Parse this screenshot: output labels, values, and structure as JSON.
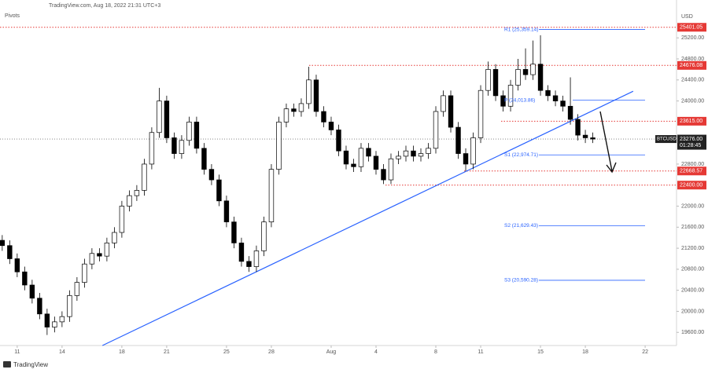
{
  "header": {
    "source": "TradingView.com, Aug 18, 2022 21:31 UTC+3",
    "indicator": "Pivots",
    "currency": "USD",
    "footer": "TradingView"
  },
  "chart_data": {
    "type": "candlestick",
    "xlim": [
      -0.3,
      90.2
    ],
    "xticks": [
      {
        "value": 2,
        "label": "11"
      },
      {
        "value": 8,
        "label": "14"
      },
      {
        "value": 16,
        "label": "18"
      },
      {
        "value": 22,
        "label": "21"
      },
      {
        "value": 30,
        "label": "25"
      },
      {
        "value": 36,
        "label": "28"
      },
      {
        "value": 44,
        "label": "Aug"
      },
      {
        "value": 50,
        "label": "4"
      },
      {
        "value": 58,
        "label": "8"
      },
      {
        "value": 64,
        "label": "11"
      },
      {
        "value": 72,
        "label": "15"
      },
      {
        "value": 78,
        "label": "18"
      },
      {
        "value": 86,
        "label": "22"
      }
    ],
    "ylim": [
      19350,
      25920
    ],
    "yticks": [
      {
        "value": 25200,
        "label": "25200.00"
      },
      {
        "value": 24800,
        "label": "24800.00"
      },
      {
        "value": 24400,
        "label": "24400.00"
      },
      {
        "value": 24000,
        "label": "24000.00"
      },
      {
        "value": 22800,
        "label": "22800.00"
      },
      {
        "value": 22000,
        "label": "22000.00"
      },
      {
        "value": 21600,
        "label": "21600.00"
      },
      {
        "value": 21200,
        "label": "21200.00"
      },
      {
        "value": 20800,
        "label": "20800.00"
      },
      {
        "value": 20400,
        "label": "20400.00"
      },
      {
        "value": 20000,
        "label": "20000.00"
      },
      {
        "value": 19600,
        "label": "19600.00"
      }
    ],
    "up_color": "#ffffff",
    "down_color": "#000000",
    "open": [
      21350,
      21250,
      21000,
      20750,
      20500,
      20250,
      19950,
      19700,
      19800,
      19900,
      20300,
      20550,
      20900,
      21100,
      21050,
      21300,
      21500,
      22000,
      22200,
      22300,
      22800,
      23400,
      24000,
      23300,
      23000,
      23250,
      23600,
      23100,
      22700,
      22500,
      22100,
      21700,
      21300,
      20950,
      20850,
      21150,
      21700,
      22700,
      23600,
      23850,
      23800,
      23950,
      24400,
      23800,
      23600,
      23450,
      23050,
      22800,
      22750,
      23100,
      22950,
      22700,
      22500,
      22900,
      22950,
      23050,
      22950,
      23000,
      23100,
      23800,
      24100,
      23500,
      23000,
      22800,
      23300,
      24200,
      24600,
      24100,
      23900,
      24300,
      24600,
      24500,
      24700,
      24200,
      24100,
      24000,
      23900,
      23650,
      23350,
      23300
    ],
    "high": [
      21450,
      21350,
      21100,
      20850,
      20600,
      20350,
      20050,
      19900,
      20000,
      20400,
      20650,
      21000,
      21200,
      21200,
      21400,
      21600,
      22100,
      22300,
      22400,
      22900,
      23500,
      24250,
      24100,
      23400,
      23350,
      23700,
      23700,
      23200,
      22800,
      22600,
      22200,
      21800,
      21400,
      21050,
      21250,
      21800,
      22800,
      23700,
      23950,
      23950,
      24050,
      24650,
      24500,
      23900,
      23700,
      23550,
      23150,
      22900,
      23200,
      23200,
      23050,
      22800,
      23000,
      23050,
      23150,
      23150,
      23100,
      23200,
      23900,
      24200,
      24200,
      23600,
      23100,
      23400,
      24300,
      24750,
      24700,
      24200,
      24400,
      24800,
      25000,
      25150,
      25250,
      24300,
      24200,
      24100,
      24450,
      23750,
      23450,
      23400
    ],
    "low": [
      21150,
      20900,
      20650,
      20400,
      20150,
      19850,
      19550,
      19600,
      19700,
      19800,
      20200,
      20450,
      20800,
      20950,
      20950,
      21200,
      21400,
      21900,
      22100,
      22200,
      22700,
      23300,
      23200,
      22900,
      22900,
      23150,
      23000,
      22600,
      22400,
      22000,
      21600,
      21200,
      20850,
      20750,
      20750,
      21050,
      21600,
      22600,
      23500,
      23700,
      23700,
      23850,
      23700,
      23500,
      23350,
      22950,
      22700,
      22650,
      22650,
      22850,
      22600,
      22420,
      22420,
      22800,
      22850,
      22850,
      22850,
      22900,
      23000,
      23700,
      23400,
      22900,
      22670,
      22700,
      23200,
      24100,
      24000,
      23800,
      23800,
      24200,
      24400,
      24400,
      24100,
      24000,
      23900,
      23800,
      23550,
      23250,
      23200,
      23200
    ],
    "close": [
      21250,
      21000,
      20750,
      20500,
      20250,
      19950,
      19700,
      19800,
      19900,
      20300,
      20550,
      20900,
      21100,
      21050,
      21300,
      21500,
      22000,
      22200,
      22300,
      22800,
      23400,
      24000,
      23300,
      23000,
      23250,
      23600,
      23100,
      22700,
      22500,
      22100,
      21700,
      21300,
      20950,
      20850,
      21150,
      21700,
      22700,
      23600,
      23850,
      23800,
      23950,
      24400,
      23800,
      23600,
      23450,
      23050,
      22800,
      22750,
      23100,
      22950,
      22700,
      22500,
      22900,
      22950,
      23050,
      22950,
      23000,
      23100,
      23800,
      24100,
      23500,
      23000,
      22800,
      23300,
      24200,
      24600,
      24100,
      23900,
      24300,
      24600,
      24500,
      24700,
      24200,
      24100,
      24000,
      23900,
      23650,
      23350,
      23300,
      23276
    ],
    "levels": [
      25401.05,
      24676.08,
      {
        "value": 23615,
        "label": "23615.00"
      },
      22668.57,
      {
        "value": 22400,
        "label": "22400.00"
      }
    ],
    "level_color": "#e53935",
    "pivots": [
      {
        "label": "R1 (25,359.14)",
        "value": 25359.14
      },
      {
        "label": "P (24,013.86)",
        "value": 24013.86
      },
      {
        "label": "S1 (22,974.71)",
        "value": 22974.71
      },
      {
        "label": "S2 (21,629.43)",
        "value": 21629.43
      },
      {
        "label": "S3 (20,590.28)",
        "value": 20590.28
      }
    ],
    "pivot_color": "#2962ff",
    "trendline": {
      "x": [
        13.4,
        84.4
      ],
      "y": [
        19350,
        24185
      ],
      "color": "#2962ff"
    },
    "last_price": {
      "symbol": "BTCUSD",
      "value": 23276,
      "label": "23276.00",
      "countdown": "01:28:45"
    }
  }
}
